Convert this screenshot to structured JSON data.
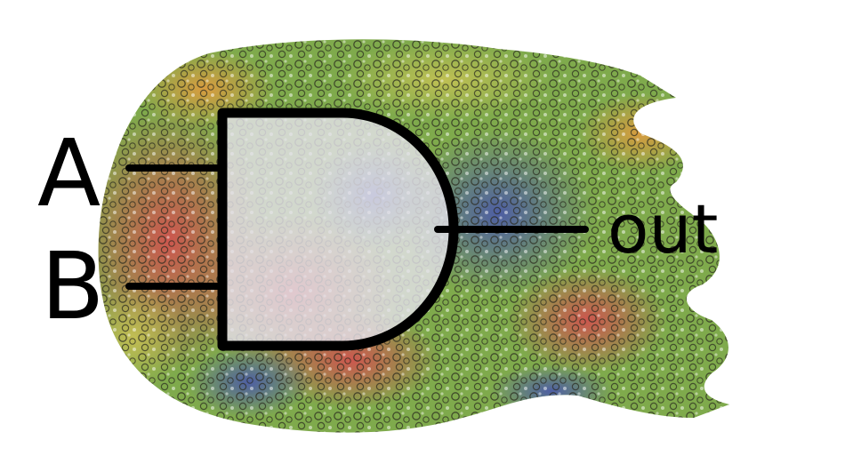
{
  "gate": {
    "type": "AND",
    "inputs": [
      {
        "label": "A"
      },
      {
        "label": "B"
      }
    ],
    "output": {
      "label": "out"
    }
  },
  "colors": {
    "wire": "#000000",
    "gate_fill": "#e4e2ea",
    "texture_green": "#7faa4c",
    "texture_red": "#d0524e",
    "texture_blue": "#4b5aa8",
    "texture_orange": "#e29a3e",
    "texture_yellow": "#cbc455"
  }
}
